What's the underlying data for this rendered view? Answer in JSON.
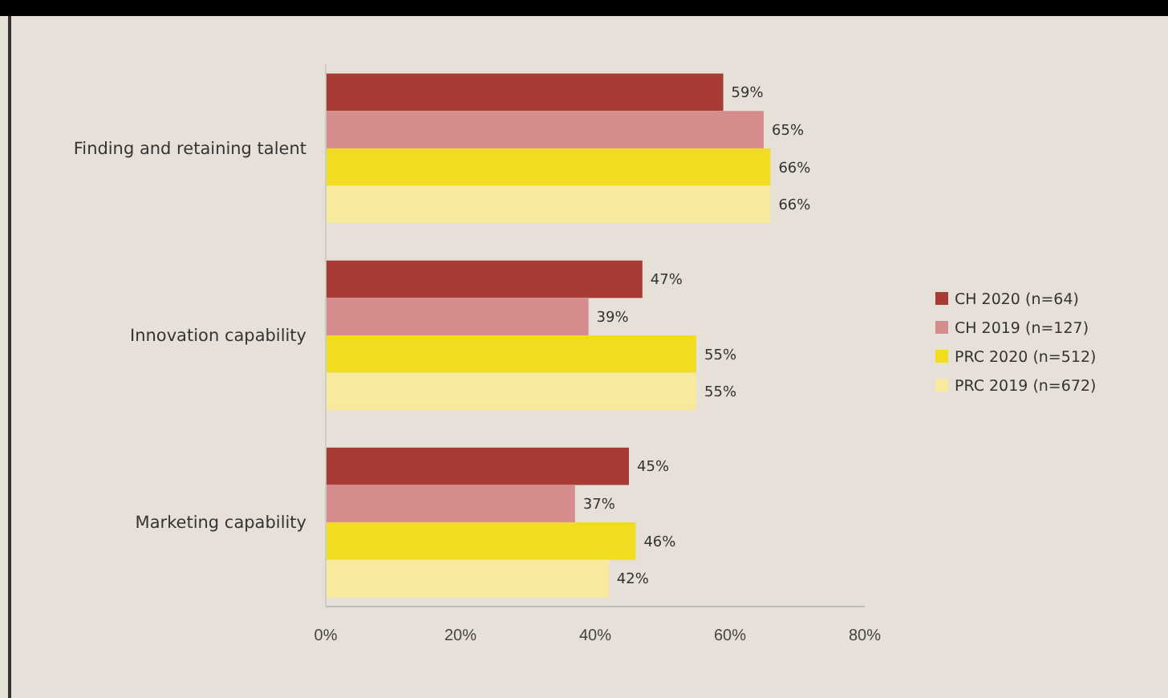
{
  "chart_data": {
    "type": "bar",
    "orientation": "horizontal",
    "categories": [
      "Finding and retaining talent",
      "Innovation capability",
      "Marketing capability"
    ],
    "series": [
      {
        "name": "CH 2020 (n=64)",
        "color": "#a83b33",
        "values": [
          59,
          47,
          45
        ],
        "value_labels": [
          "59%",
          "47%",
          "45%"
        ]
      },
      {
        "name": "CH 2019 (n=127)",
        "color": "#d68c8c",
        "values": [
          65,
          39,
          37
        ],
        "value_labels": [
          "65%",
          "39%",
          "37%"
        ]
      },
      {
        "name": "PRC 2020 (n=512)",
        "color": "#f1dc1f",
        "values": [
          66,
          55,
          46
        ],
        "value_labels": [
          "66%",
          "55%",
          "46%"
        ]
      },
      {
        "name": "PRC 2019 (n=672)",
        "color": "#f8ea9c",
        "values": [
          66,
          55,
          42
        ],
        "value_labels": [
          "66%",
          "55%",
          "42%"
        ]
      }
    ],
    "xlim": [
      0,
      80
    ],
    "xticks": [
      {
        "value": 0,
        "label": "0%"
      },
      {
        "value": 20,
        "label": "20%"
      },
      {
        "value": 40,
        "label": "40%"
      },
      {
        "value": 60,
        "label": "60%"
      },
      {
        "value": 80,
        "label": "80%"
      }
    ],
    "grid": false,
    "legend": "right"
  }
}
